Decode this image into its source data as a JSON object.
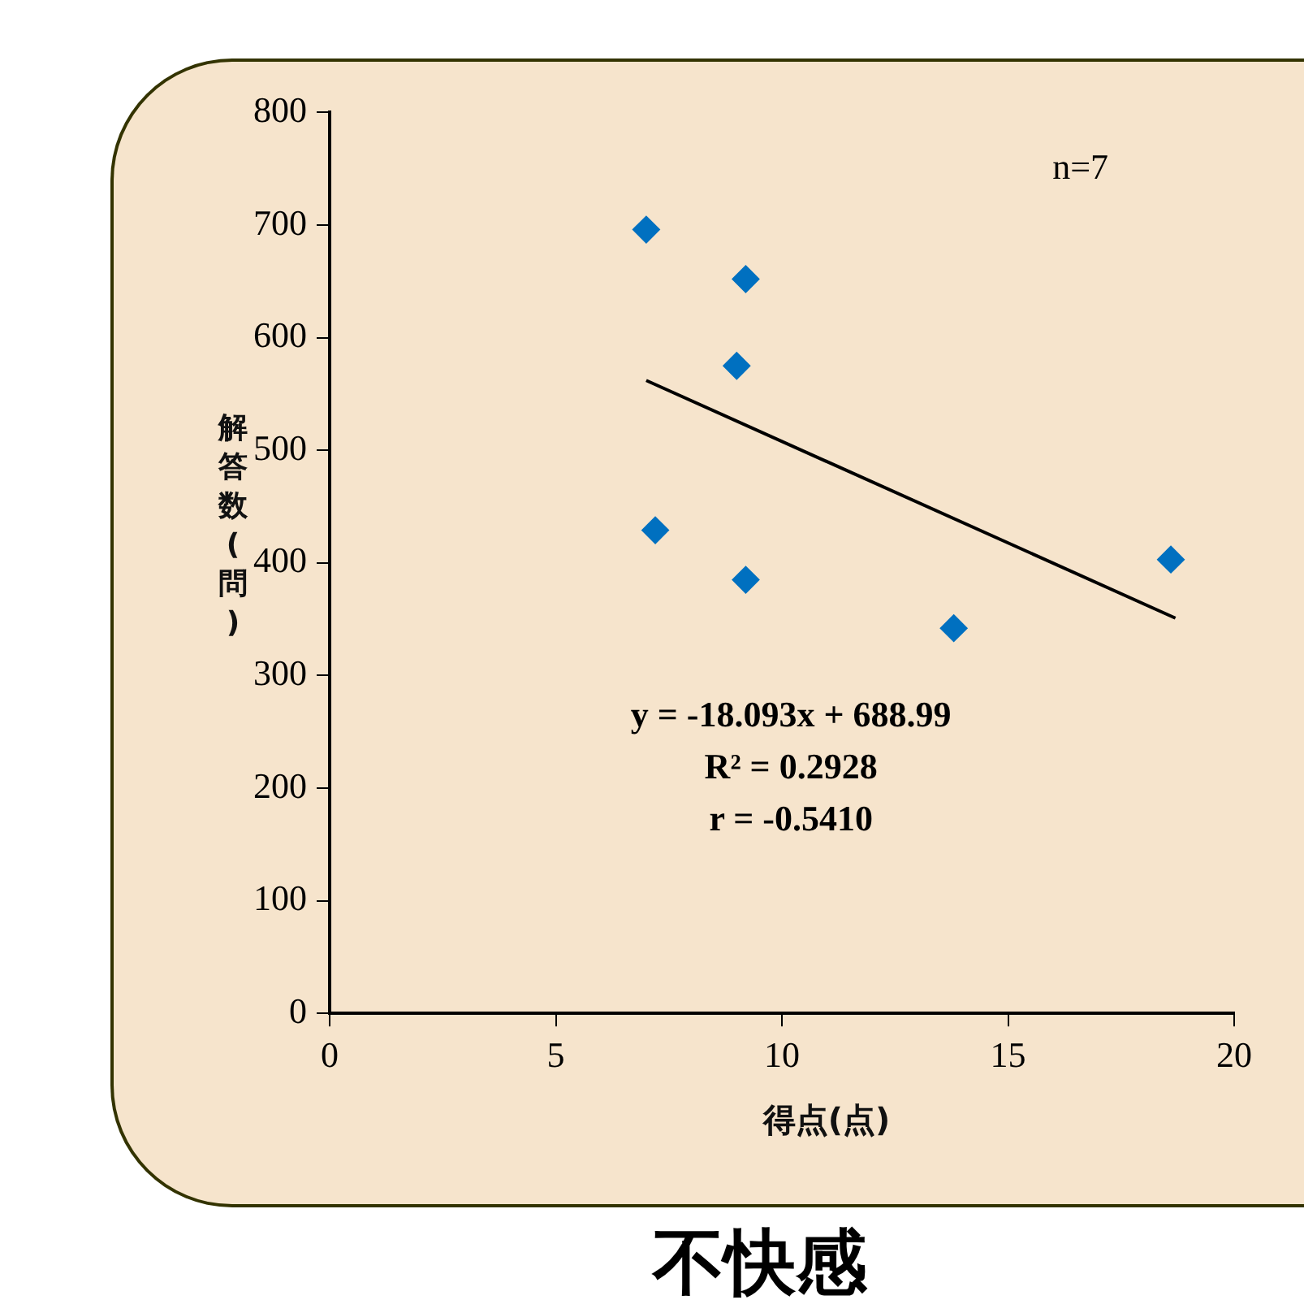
{
  "chart_data": {
    "type": "scatter",
    "title": "不快感",
    "xlabel": "得点(点)",
    "ylabel": "解答数(問)",
    "xlim": [
      0,
      20
    ],
    "xticks": [
      0,
      5,
      10,
      15,
      20
    ],
    "ylim": [
      0,
      800
    ],
    "yticks": [
      0,
      100,
      200,
      300,
      400,
      500,
      600,
      700,
      800
    ],
    "grid": false,
    "legend": false,
    "marker": "diamond",
    "annotations": [
      "n=7",
      "y = -18.093x + 688.99",
      "R² = 0.2928",
      "r = -0.5410"
    ],
    "series": [
      {
        "color": "#0070c0",
        "x": [
          7.0,
          9.2,
          9.0,
          7.2,
          9.2,
          13.8,
          18.6
        ],
        "values": [
          696,
          652,
          575,
          429,
          385,
          342,
          403
        ]
      },
      {
        "type": "line",
        "color": "#000000",
        "marker": "none",
        "x": [
          7.0,
          18.7
        ],
        "values": [
          562,
          351
        ]
      }
    ]
  }
}
